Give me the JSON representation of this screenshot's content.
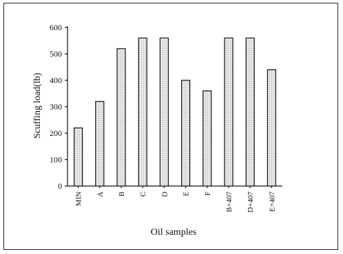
{
  "chart_data": {
    "type": "bar",
    "title": "",
    "xlabel": "Oil samples",
    "ylabel": "Scuffing load(lb)",
    "categories": [
      "MIN",
      "A",
      "B",
      "C",
      "D",
      "E",
      "F",
      "B+407",
      "D+407",
      "E+407"
    ],
    "values": [
      220,
      320,
      520,
      560,
      560,
      400,
      360,
      560,
      560,
      440
    ],
    "ylim": [
      0,
      600
    ],
    "yticks": [
      "0",
      "100",
      "200",
      "300",
      "400",
      "500",
      "600"
    ],
    "grid": false,
    "legend": "none",
    "bar_fill": "#e6e6e6",
    "bar_stroke": "#111111"
  }
}
